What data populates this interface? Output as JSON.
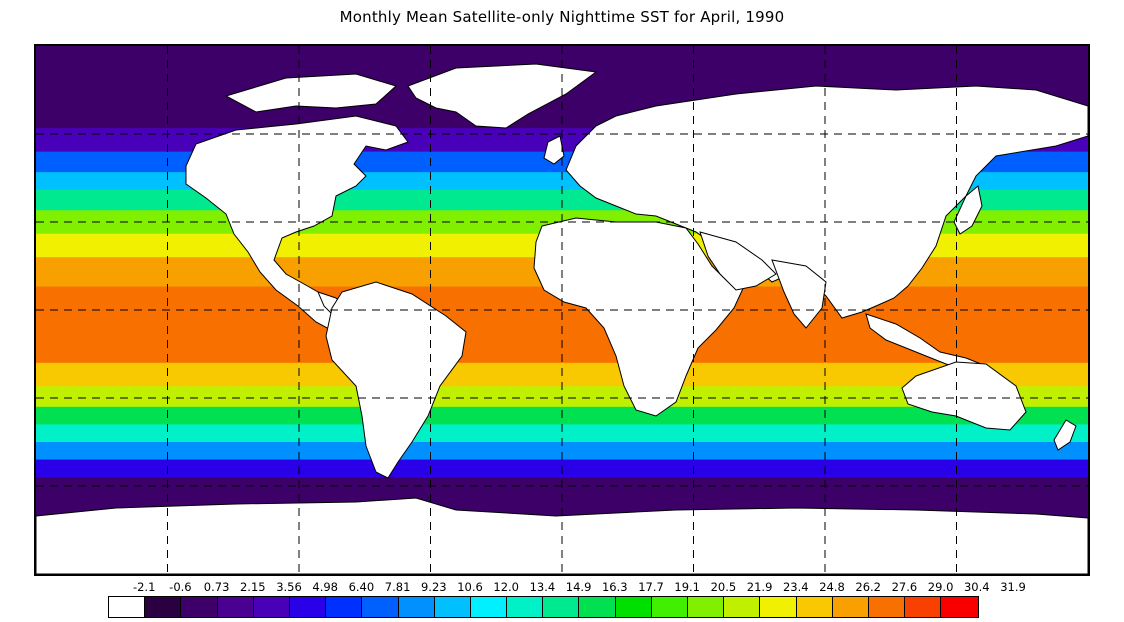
{
  "title": "Monthly Mean Satellite-only Nighttime SST for April, 1990",
  "legend": {
    "labels": [
      "-2.1",
      "-0.6",
      "0.73",
      "2.15",
      "3.56",
      "4.98",
      "6.40",
      "7.81",
      "9.23",
      "10.6",
      "12.0",
      "13.4",
      "14.9",
      "16.3",
      "17.7",
      "19.1",
      "20.5",
      "21.9",
      "23.4",
      "24.8",
      "26.2",
      "27.6",
      "29.0",
      "30.4",
      "31.9"
    ],
    "colors": [
      "#ffffff",
      "#2a0040",
      "#3c0068",
      "#4a0090",
      "#4800b8",
      "#2a00e8",
      "#0030ff",
      "#0060ff",
      "#0090ff",
      "#00c0ff",
      "#00f0ff",
      "#00f0c8",
      "#00e890",
      "#00e050",
      "#00e000",
      "#40f000",
      "#80f000",
      "#c0f000",
      "#f0f000",
      "#f8c800",
      "#f8a000",
      "#f87000",
      "#f84000",
      "#f80000"
    ]
  },
  "map": {
    "land_color": "#ffffff",
    "gridline_style": "dashed",
    "temperature_bands": [
      {
        "lat_from": 90,
        "lat_to": 62,
        "color": "#3c0068"
      },
      {
        "lat_from": 62,
        "lat_to": 54,
        "color": "#4800b8"
      },
      {
        "lat_from": 54,
        "lat_to": 47,
        "color": "#0060ff"
      },
      {
        "lat_from": 47,
        "lat_to": 41,
        "color": "#00c0ff"
      },
      {
        "lat_from": 41,
        "lat_to": 34,
        "color": "#00e890"
      },
      {
        "lat_from": 34,
        "lat_to": 26,
        "color": "#80f000"
      },
      {
        "lat_from": 26,
        "lat_to": 18,
        "color": "#f0f000"
      },
      {
        "lat_from": 18,
        "lat_to": 8,
        "color": "#f8a000"
      },
      {
        "lat_from": 8,
        "lat_to": -18,
        "color": "#f87000"
      },
      {
        "lat_from": -18,
        "lat_to": -26,
        "color": "#f8c800"
      },
      {
        "lat_from": -26,
        "lat_to": -33,
        "color": "#c0f000"
      },
      {
        "lat_from": -33,
        "lat_to": -39,
        "color": "#00e050"
      },
      {
        "lat_from": -39,
        "lat_to": -45,
        "color": "#00f0c8"
      },
      {
        "lat_from": -45,
        "lat_to": -51,
        "color": "#0090ff"
      },
      {
        "lat_from": -51,
        "lat_to": -57,
        "color": "#2a00e8"
      },
      {
        "lat_from": -57,
        "lat_to": -90,
        "color": "#3c0068"
      }
    ]
  }
}
